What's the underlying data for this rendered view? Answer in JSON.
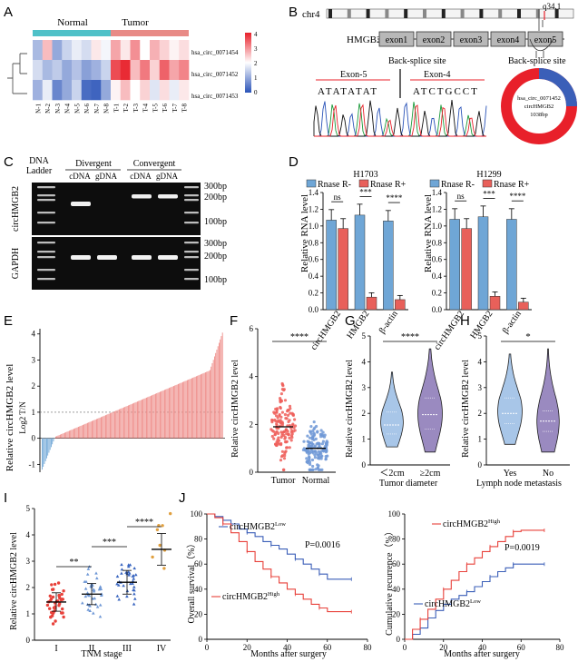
{
  "panel_letters": [
    "A",
    "B",
    "C",
    "D",
    "E",
    "F",
    "G",
    "H",
    "I",
    "J"
  ],
  "panelA": {
    "groups": [
      "Normal",
      "Tumor"
    ],
    "rows": [
      "hsa_circ_0071454",
      "hsa_circ_0071452",
      "hsa_circ_0071453"
    ],
    "cols": [
      "N-1",
      "N-2",
      "N-3",
      "N-4",
      "N-5",
      "N-6",
      "N-7",
      "N-8",
      "T-1",
      "T-2",
      "T-3",
      "T-4",
      "T-5",
      "T-6",
      "T-7",
      "T-8"
    ],
    "scale_ticks": [
      "4",
      "3",
      "2",
      "1",
      "0"
    ],
    "group_colors": {
      "Normal": "#4fc1c8",
      "Tumor": "#e88a86"
    }
  },
  "panelB": {
    "chrom": "chr4",
    "band": "q34.1",
    "gene": "HMGB2",
    "exons": [
      "exon1",
      "exon2",
      "exon3",
      "exon4",
      "exon5"
    ],
    "bss_title_left": "Back-splice site",
    "bss_title_right": "Back-splice site",
    "exon5_label": "Exon-5",
    "exon4_label": "Exon-4",
    "seq_left": "ATATATAT",
    "seq_right": "ATCTGCCT",
    "ring_lines": [
      "hsa_circ_0071452",
      "circHMGB2",
      "1038bp"
    ]
  },
  "panelC": {
    "ladder_label": [
      "DNA",
      "Ladder"
    ],
    "divergent": "Divergent",
    "convergent": "Convergent",
    "lanes": [
      "cDNA",
      "gDNA",
      "cDNA",
      "gDNA"
    ],
    "gel1_label": "circHMGB2",
    "gel2_label": "GAPDH",
    "bp_top": [
      "300bp",
      "200bp",
      "100bp"
    ],
    "bp_bottom": [
      "300bp",
      "200bp",
      "100bp"
    ]
  },
  "panelD": {
    "legend": [
      "Rnase R-",
      "Rnase R+"
    ],
    "colors": {
      "minus": "#6fa6d6",
      "plus": "#e8605a"
    },
    "ylabel": "Relative RNA level",
    "yticks": [
      "0.0",
      "0.2",
      "0.4",
      "0.6",
      "0.8",
      "1.0",
      "1.2",
      "1.4"
    ],
    "charts": [
      {
        "title": "H1703",
        "categories": [
          "circHMGB2",
          "HMGB2",
          "β-actin"
        ],
        "minus": [
          1.07,
          1.13,
          1.06
        ],
        "plus": [
          0.97,
          0.15,
          0.12
        ],
        "sig": [
          "ns",
          "***",
          "****"
        ]
      },
      {
        "title": "H1299",
        "categories": [
          "circHMGB2",
          "HMGB2",
          "β-actin"
        ],
        "minus": [
          1.08,
          1.11,
          1.08
        ],
        "plus": [
          0.97,
          0.16,
          0.09
        ],
        "sig": [
          "ns",
          "***",
          "****"
        ]
      }
    ]
  },
  "panelE": {
    "ylabel": "Relative circHMGB2 level",
    "ylabel2": "Log2 T/N",
    "yticks": [
      "-1",
      "0",
      "1",
      "2",
      "3",
      "4"
    ]
  },
  "panelF": {
    "ylabel": "Relative circHMGB2 level",
    "categories": [
      "Tumor",
      "Normal"
    ],
    "yticks": [
      "0",
      "2",
      "4",
      "6"
    ],
    "sig": "****",
    "medians": [
      1.9,
      1.0
    ]
  },
  "panelG": {
    "ylabel": "Relative circHMGB2 level",
    "categories": [
      "＜2cm",
      "≥2cm"
    ],
    "xlabel": "Tumor diameter",
    "yticks": [
      "0",
      "1",
      "2",
      "3",
      "4",
      "5"
    ],
    "sig": "****"
  },
  "panelH": {
    "ylabel": "Relative circHMGB2 level",
    "categories": [
      "Yes",
      "No"
    ],
    "xlabel": "Lymph node metastasis",
    "yticks": [
      "0",
      "1",
      "2",
      "3",
      "4",
      "5"
    ],
    "sig": "*"
  },
  "panelI": {
    "ylabel": "Relative circHMGB2 level",
    "categories": [
      "I",
      "II",
      "III",
      "IV"
    ],
    "xlabel": "TNM stage",
    "yticks": [
      "0",
      "1",
      "2",
      "3",
      "4",
      "5"
    ],
    "sig": [
      "**",
      "***",
      "****"
    ],
    "means": [
      1.45,
      1.75,
      2.2,
      3.45
    ]
  },
  "panelJ": {
    "left": {
      "ylabel": "Overall survival（%）",
      "xlabel": "Months after surgery",
      "yticks": [
        "0",
        "20",
        "40",
        "60",
        "80",
        "100"
      ],
      "xticks": [
        "0",
        "20",
        "40",
        "60",
        "80"
      ],
      "low_label": "circHMGB2",
      "low_sup": "Low",
      "high_label": "circHMGB2",
      "high_sup": "High",
      "p": "P=0.0016"
    },
    "right": {
      "ylabel": "Cumulative recurrence（%）",
      "xlabel": "Months after surgery",
      "yticks": [
        "0",
        "20",
        "40",
        "60",
        "80",
        "100"
      ],
      "xticks": [
        "0",
        "20",
        "40",
        "60",
        "80"
      ],
      "low_label": "circHMGB2",
      "low_sup": "Low",
      "high_label": "circHMGB2",
      "high_sup": "High",
      "p": "P=0.0019"
    },
    "colors": {
      "low": "#3b5fb8",
      "high": "#e8413a"
    }
  }
}
